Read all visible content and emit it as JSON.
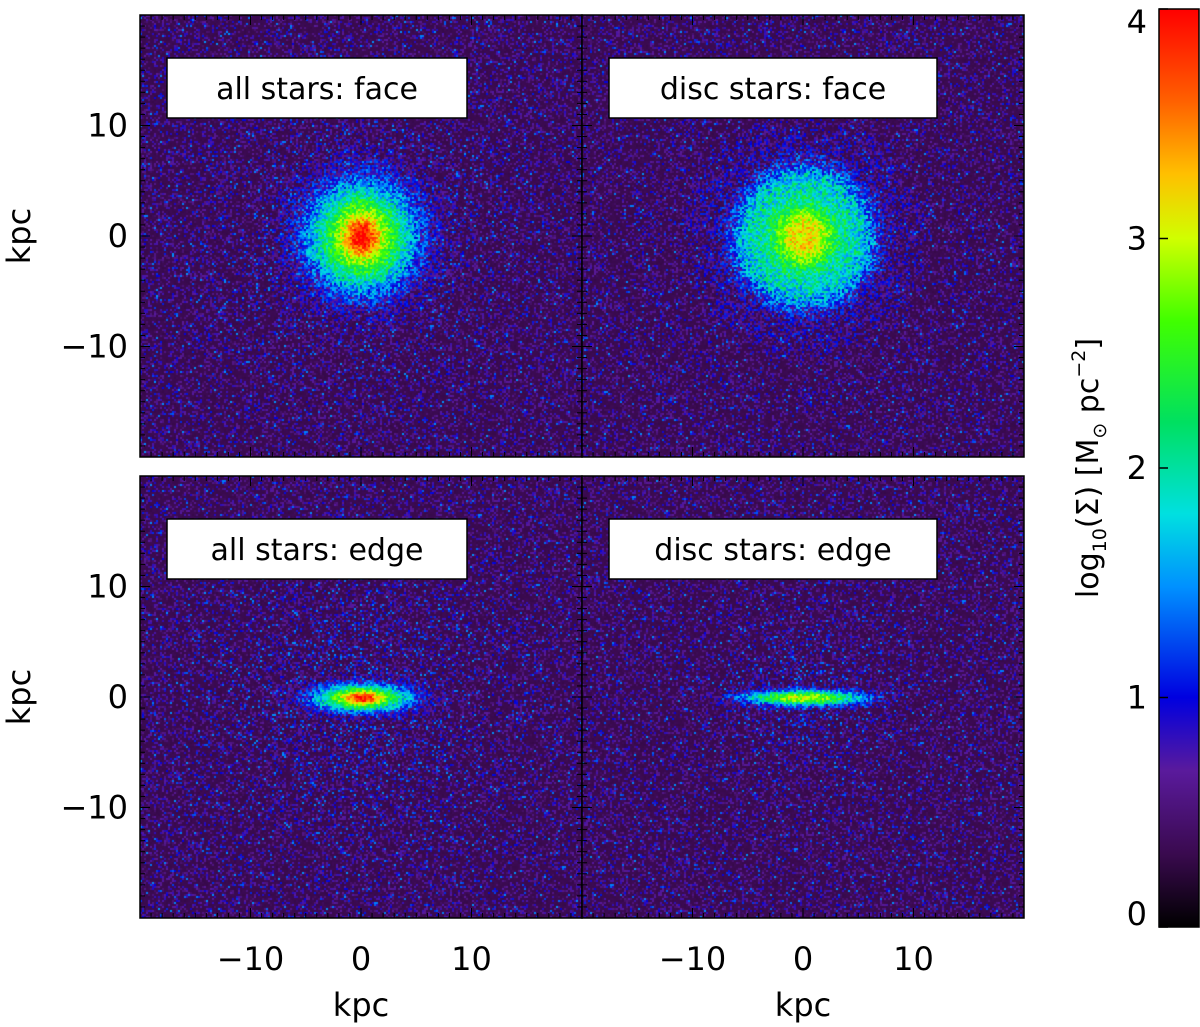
{
  "chart_data": {
    "type": "heatmap",
    "panels": [
      {
        "label": "all stars: face",
        "row": 0,
        "col": 0,
        "population": "all",
        "view": "face",
        "scale_length_kpc": 5.5,
        "axis_ratio": 1.0,
        "bulge_strength": 1.0,
        "ring_structure": false
      },
      {
        "label": "disc stars: face",
        "row": 0,
        "col": 1,
        "population": "disc",
        "view": "face",
        "scale_length_kpc": 6.5,
        "axis_ratio": 1.0,
        "bulge_strength": 0.15,
        "ring_structure": true
      },
      {
        "label": "all stars: edge",
        "row": 1,
        "col": 0,
        "population": "all",
        "view": "edge",
        "scale_length_kpc": 5.0,
        "axis_ratio": 0.28,
        "bulge_strength": 1.0,
        "ring_structure": false
      },
      {
        "label": "disc stars: edge",
        "row": 1,
        "col": 1,
        "population": "disc",
        "view": "edge",
        "scale_length_kpc": 6.0,
        "axis_ratio": 0.13,
        "bulge_strength": 0.1,
        "ring_structure": false
      }
    ],
    "peak_log10_sigma": {
      "all stars: face": 4.0,
      "disc stars: face": 3.0,
      "all stars: edge": 4.0,
      "disc stars: edge": 3.0
    },
    "xlim": [
      -20,
      20
    ],
    "ylim": [
      -20,
      20
    ],
    "xticks": [
      -10,
      0,
      10
    ],
    "yticks": [
      -10,
      0,
      10
    ],
    "xlabel": "kpc",
    "ylabel": "kpc",
    "xtick_labels": [
      "−10",
      "0",
      "10"
    ],
    "ytick_labels": [
      "10",
      "0",
      "−10"
    ],
    "colorbar": {
      "label_prefix": "log",
      "label_sub": "10",
      "label_mid": "(Σ)  [M",
      "label_sun": "⊙",
      "label_unit": " pc",
      "label_sup": "−2",
      "label_end": "]",
      "range": [
        0,
        4
      ],
      "ticks": [
        0,
        1,
        2,
        3,
        4
      ],
      "tick_labels": [
        "0",
        "1",
        "2",
        "3",
        "4"
      ],
      "colormap": "rainbow"
    },
    "background_color": "#3a0a4f",
    "grid": false
  }
}
